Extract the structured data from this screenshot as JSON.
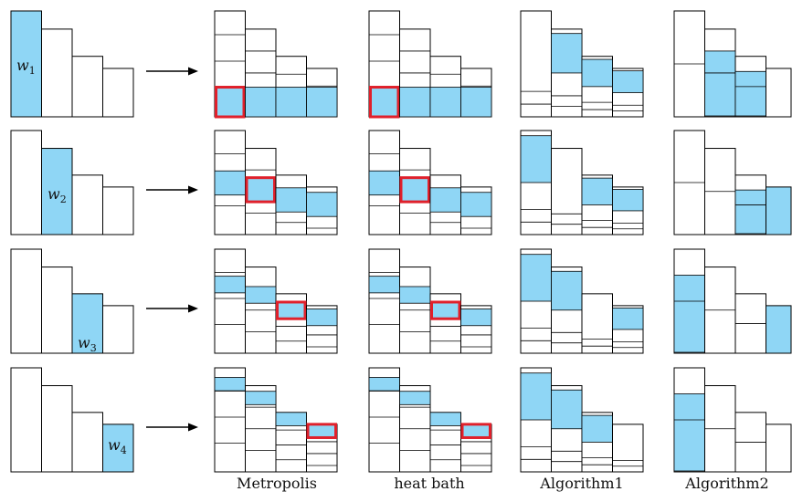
{
  "colors": {
    "fill": "#8fd6f5",
    "stroke": "#000000",
    "highlight": "#e0202b"
  },
  "column_labels": [
    "Metropolis",
    "heat bath",
    "Algorithm1",
    "Algorithm2"
  ],
  "weight_labels": [
    {
      "symbol": "w",
      "index": "1"
    },
    {
      "symbol": "w",
      "index": "2"
    },
    {
      "symbol": "w",
      "index": "3"
    },
    {
      "symbol": "w",
      "index": "4"
    }
  ],
  "weights": [
    0.35,
    0.29,
    0.2,
    0.16
  ],
  "rows": [
    {
      "selected": 1,
      "metropolis": {
        "highlighted_bar": 1
      },
      "heat_bath": {
        "highlighted_bar": 1
      },
      "algorithm1": {
        "filled_bars": [
          2,
          3,
          4
        ]
      },
      "algorithm2": {
        "filled_bars": [
          2,
          3
        ]
      }
    },
    {
      "selected": 2,
      "metropolis": {
        "highlighted_bar": 2
      },
      "heat_bath": {
        "highlighted_bar": 2
      },
      "algorithm1": {
        "filled_bars": [
          1,
          3,
          4
        ]
      },
      "algorithm2": {
        "filled_bars": [
          3,
          4
        ]
      }
    },
    {
      "selected": 3,
      "metropolis": {
        "highlighted_bar": 3
      },
      "heat_bath": {
        "highlighted_bar": 3
      },
      "algorithm1": {
        "filled_bars": [
          1,
          2,
          4
        ]
      },
      "algorithm2": {
        "filled_bars": [
          1,
          4
        ]
      }
    },
    {
      "selected": 4,
      "metropolis": {
        "highlighted_bar": 4
      },
      "heat_bath": {
        "highlighted_bar": 4
      },
      "algorithm1": {
        "filled_bars": [
          1,
          2,
          3
        ]
      },
      "algorithm2": {
        "filled_bars": [
          1
        ]
      }
    }
  ]
}
